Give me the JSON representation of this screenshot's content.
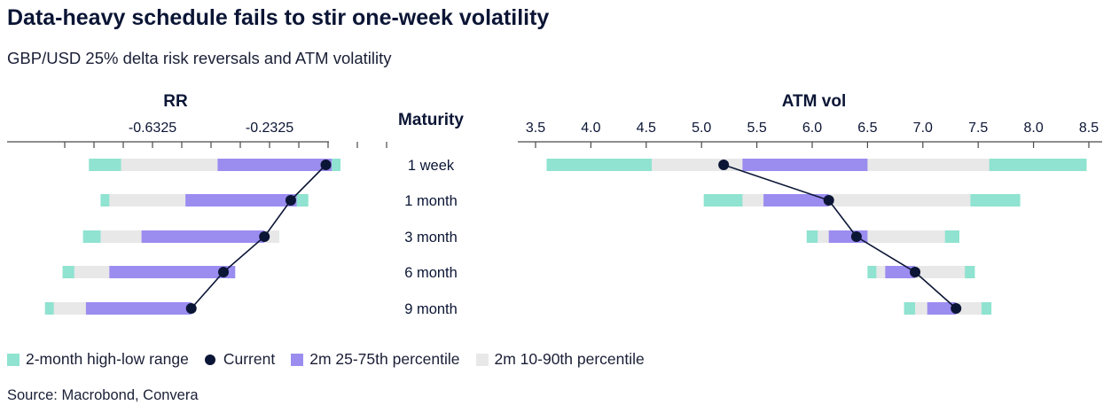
{
  "title": "Data-heavy schedule fails to stir one-week volatility",
  "subtitle": "GBP/USD 25% delta risk reversals and ATM volatility",
  "source": "Source: Macrobond, Convera",
  "colors": {
    "high_low": "#8fe3d0",
    "p25_75": "#9b8cf0",
    "p10_90": "#e8e8e8",
    "current": "#0b1535",
    "axis": "#4a4a4a"
  },
  "legend": [
    {
      "label": "2-month high-low range",
      "key": "high_low",
      "shape": "square"
    },
    {
      "label": "Current",
      "key": "current",
      "shape": "dot"
    },
    {
      "label": "2m 25-75th percentile",
      "key": "p25_75",
      "shape": "square"
    },
    {
      "label": "2m 10-90th percentile",
      "key": "p10_90",
      "shape": "square"
    }
  ],
  "chart_data": {
    "type": "range-bar",
    "category_title": "Maturity",
    "categories": [
      "1 week",
      "1 month",
      "3 month",
      "6 month",
      "9 month"
    ],
    "panels": [
      {
        "name": "RR",
        "xlabel": "RR",
        "ticks": [
          "-0.6325",
          "-0.2325"
        ],
        "xlim": [
          -1.02,
          0.32
        ],
        "series": [
          {
            "category": "1 week",
            "low": -0.85,
            "p10": -0.74,
            "p25": -0.41,
            "current": -0.04,
            "p75": -0.02,
            "p90": -0.02,
            "high": 0.01
          },
          {
            "category": "1 month",
            "low": -0.81,
            "p10": -0.78,
            "p25": -0.52,
            "current": -0.16,
            "p75": -0.14,
            "p90": -0.14,
            "high": -0.1
          },
          {
            "category": "3 month",
            "low": -0.87,
            "p10": -0.81,
            "p25": -0.67,
            "current": -0.25,
            "p75": -0.25,
            "p90": -0.2,
            "high": -0.2
          },
          {
            "category": "6 month",
            "low": -0.94,
            "p10": -0.9,
            "p25": -0.78,
            "current": -0.39,
            "p75": -0.35,
            "p90": -0.35,
            "high": -0.35
          },
          {
            "category": "9 month",
            "low": -1.0,
            "p10": -0.97,
            "p25": -0.86,
            "current": -0.5,
            "p75": -0.5,
            "p90": -0.5,
            "high": -0.5
          }
        ]
      },
      {
        "name": "ATM vol",
        "xlabel": "ATM vol",
        "ticks": [
          "3.5",
          "4.0",
          "4.5",
          "5.0",
          "5.5",
          "6.0",
          "6.5",
          "7.0",
          "7.5",
          "8.0",
          "8.5"
        ],
        "xlim": [
          3.45,
          8.6
        ],
        "series": [
          {
            "category": "1 week",
            "low": 3.6,
            "p10": 4.55,
            "p25": 5.37,
            "current": 5.2,
            "p75": 6.5,
            "p90": 7.6,
            "high": 8.48
          },
          {
            "category": "1 month",
            "low": 5.02,
            "p10": 5.37,
            "p25": 5.56,
            "current": 6.15,
            "p75": 6.15,
            "p90": 7.43,
            "high": 7.88
          },
          {
            "category": "3 month",
            "low": 5.95,
            "p10": 6.05,
            "p25": 6.15,
            "current": 6.4,
            "p75": 6.5,
            "p90": 7.2,
            "high": 7.33
          },
          {
            "category": "6 month",
            "low": 6.5,
            "p10": 6.58,
            "p25": 6.66,
            "current": 6.93,
            "p75": 6.93,
            "p90": 7.38,
            "high": 7.47
          },
          {
            "category": "9 month",
            "low": 6.83,
            "p10": 6.93,
            "p25": 7.04,
            "current": 7.3,
            "p75": 7.3,
            "p90": 7.53,
            "high": 7.62
          }
        ]
      }
    ]
  }
}
